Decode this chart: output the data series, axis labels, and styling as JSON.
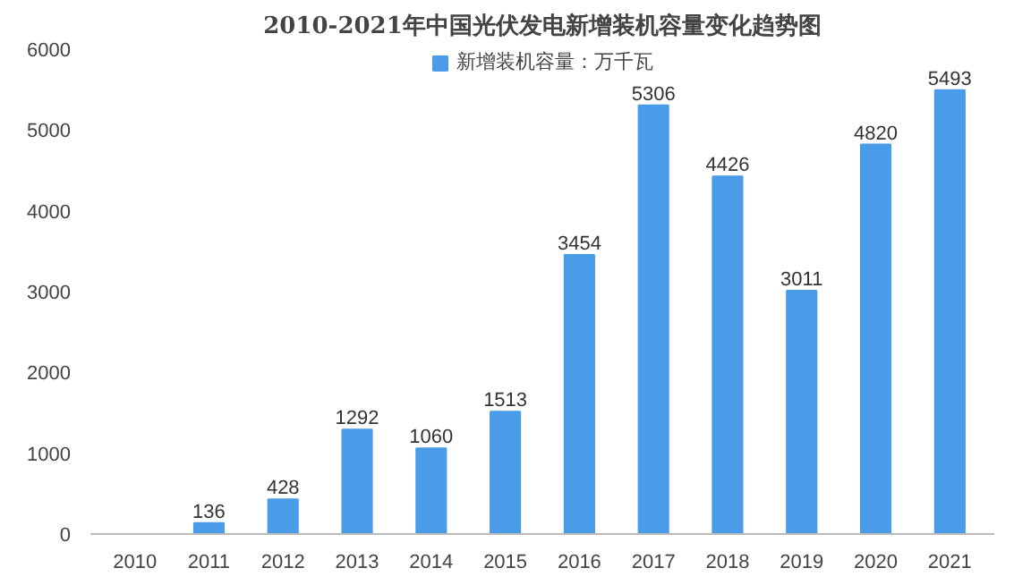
{
  "chart_data": {
    "type": "bar",
    "title": "2010-2021年中国光伏发电新增装机容量变化趋势图",
    "categories": [
      "2010",
      "2011",
      "2012",
      "2013",
      "2014",
      "2015",
      "2016",
      "2017",
      "2018",
      "2019",
      "2020",
      "2021"
    ],
    "series": [
      {
        "name": "新增装机容量：万千瓦",
        "color": "#4a9be8",
        "values": [
          null,
          136,
          428,
          1292,
          1060,
          1513,
          3454,
          5306,
          4426,
          3011,
          4820,
          5493
        ]
      }
    ],
    "ylim": [
      0,
      6000
    ],
    "yticks": [
      0,
      1000,
      2000,
      3000,
      4000,
      5000,
      6000
    ],
    "grid": false,
    "legend": "top",
    "data_labels": true
  }
}
